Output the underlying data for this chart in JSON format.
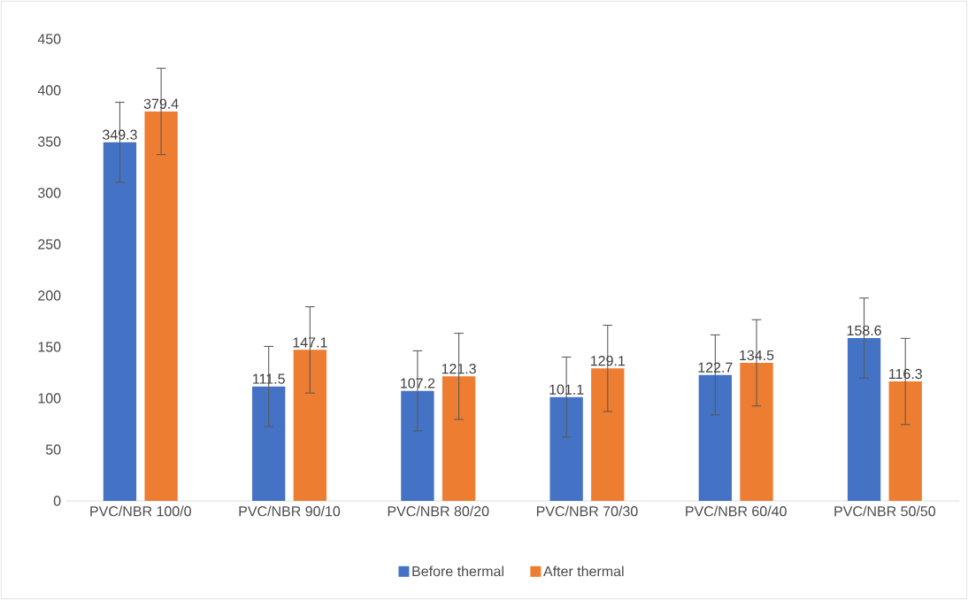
{
  "chart_data": {
    "type": "bar",
    "categories": [
      "PVC/NBR 100/0",
      "PVC/NBR 90/10",
      "PVC/NBR 80/20",
      "PVC/NBR 70/30",
      "PVC/NBR 60/40",
      "PVC/NBR 50/50"
    ],
    "series": [
      {
        "name": "Before thermal",
        "color": "#4472c4",
        "values": [
          349.3,
          111.5,
          107.2,
          101.1,
          122.7,
          158.6
        ],
        "errors": [
          39,
          39,
          39,
          39,
          39,
          39
        ]
      },
      {
        "name": "After thermal",
        "color": "#ed7d31",
        "values": [
          379.4,
          147.1,
          121.3,
          129.1,
          134.5,
          116.3
        ],
        "errors": [
          42,
          42,
          42,
          42,
          42,
          42
        ]
      }
    ],
    "ylim": [
      0,
      450
    ],
    "yticks": [
      0,
      50,
      100,
      150,
      200,
      250,
      300,
      350,
      400,
      450
    ],
    "data_labels": true,
    "legend": "bottom"
  }
}
